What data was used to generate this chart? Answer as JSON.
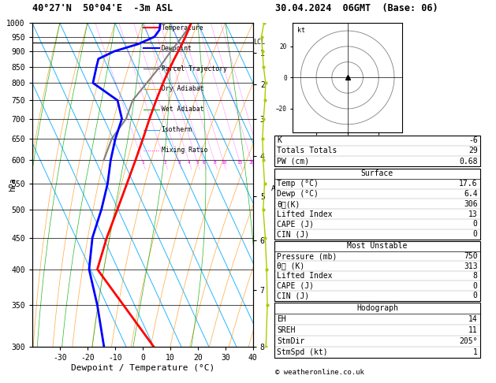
{
  "title_left": "40°27'N  50°04'E  -3m ASL",
  "title_right": "30.04.2024  06GMT  (Base: 06)",
  "xlabel": "Dewpoint / Temperature (°C)",
  "ylabel_left": "hPa",
  "km_labels": [
    1,
    2,
    3,
    4,
    5,
    6,
    7,
    8
  ],
  "km_pressures": [
    895,
    795,
    700,
    610,
    525,
    445,
    370,
    300
  ],
  "lcl_pressure": 930,
  "temperature_profile": {
    "pressure": [
      1000,
      975,
      950,
      925,
      900,
      875,
      850,
      800,
      750,
      700,
      650,
      600,
      550,
      500,
      450,
      400,
      350,
      300
    ],
    "temp": [
      17.6,
      15.5,
      13.2,
      10.8,
      8.2,
      5.5,
      2.8,
      -2.6,
      -8.0,
      -13.5,
      -19.2,
      -25.5,
      -32.5,
      -40.2,
      -48.8,
      -57.5,
      -54.0,
      -50.0
    ]
  },
  "dewpoint_profile": {
    "pressure": [
      1000,
      975,
      950,
      925,
      900,
      875,
      850,
      800,
      750,
      700,
      650,
      600,
      550,
      500,
      450,
      400,
      350,
      300
    ],
    "temp": [
      6.4,
      5.0,
      2.0,
      -5.0,
      -15.0,
      -22.0,
      -24.0,
      -28.0,
      -22.0,
      -23.5,
      -29.2,
      -34.5,
      -39.5,
      -46.0,
      -54.0,
      -60.5,
      -63.5,
      -68.0
    ]
  },
  "parcel_profile": {
    "pressure": [
      1000,
      975,
      950,
      930,
      900,
      850,
      800,
      750,
      700,
      650,
      600
    ],
    "temp": [
      17.6,
      15.0,
      12.0,
      9.5,
      5.5,
      -1.0,
      -8.5,
      -16.5,
      -22.0,
      -30.5,
      -37.0
    ]
  },
  "wind_p": [
    300,
    350,
    400,
    450,
    500,
    550,
    600,
    650,
    700,
    750,
    800,
    850,
    900,
    950,
    1000
  ],
  "wind_x": [
    0.3,
    0.5,
    0.4,
    0.2,
    -0.1,
    0.1,
    -0.1,
    -0.2,
    -0.05,
    0.15,
    0.25,
    -0.05,
    -0.2,
    -0.35,
    0.0
  ],
  "colors": {
    "temperature": "#ff0000",
    "dewpoint": "#0000ff",
    "parcel": "#808080",
    "dry_adiabat": "#ff8c00",
    "wet_adiabat": "#00aa00",
    "isotherm": "#00aaff",
    "mixing_ratio": "#ff00ff",
    "wind_line": "#aacc00"
  },
  "info_panel": {
    "K": "-6",
    "Totals_Totals": "29",
    "PW_cm": "0.68",
    "Surface_Temp": "17.6",
    "Surface_Dewp": "6.4",
    "Surface_theta_e": "306",
    "Surface_LI": "13",
    "Surface_CAPE": "0",
    "Surface_CIN": "0",
    "MU_Pressure": "750",
    "MU_theta_e": "313",
    "MU_LI": "8",
    "MU_CAPE": "0",
    "MU_CIN": "0",
    "EH": "14",
    "SREH": "11",
    "StmDir": "205°",
    "StmSpd": "1"
  }
}
